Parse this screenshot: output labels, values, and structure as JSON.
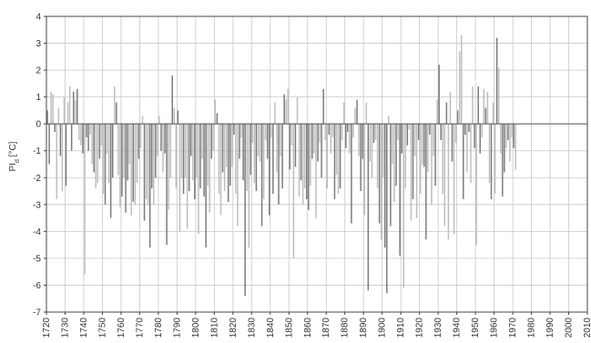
{
  "chart_data": {
    "type": "bar",
    "title": "",
    "xlabel": "",
    "ylabel": "PI",
    "ylabel_sub": "d",
    "ylabel_unit": " [°C]",
    "xlim": [
      1720,
      2010
    ],
    "ylim": [
      -7,
      4
    ],
    "grid": true,
    "x_ticks": [
      1720,
      1730,
      1740,
      1750,
      1760,
      1770,
      1780,
      1790,
      1800,
      1810,
      1820,
      1830,
      1840,
      1850,
      1860,
      1870,
      1880,
      1890,
      1900,
      1910,
      1920,
      1930,
      1940,
      1950,
      1960,
      1970,
      1980,
      1990,
      2000,
      2010
    ],
    "y_ticks": [
      -7,
      -6,
      -5,
      -4,
      -3,
      -2,
      -1,
      0,
      1,
      2,
      3,
      4
    ],
    "colors": {
      "bar_light": "#bdbdbd",
      "bar_dark": "#7a7a7a",
      "grid": "#c8c8c8",
      "axis": "#444444",
      "zero_line": "#555555"
    },
    "series": [
      {
        "start_year": 1720,
        "values": [
          0.5,
          -1.5,
          1.2,
          1.1,
          -0.3,
          -2.8,
          0.6,
          -1.2,
          -2.5,
          1.0,
          -2.3,
          0.8,
          1.4,
          -1.0,
          1.2,
          0.9,
          1.3,
          -0.6,
          -0.8,
          -1.1,
          -5.6,
          -0.5,
          -1.0,
          -0.4,
          -1.5,
          -1.8,
          -2.4,
          -2.2,
          -1.3,
          -0.8,
          -2.6,
          -3.0,
          -1.1,
          -2.2,
          -3.5,
          -2.0,
          1.4,
          0.8,
          -1.9,
          -3.1,
          -2.7,
          -2.0,
          -3.3,
          -2.1,
          -1.5,
          -3.4,
          -2.9,
          -3.0,
          -2.2,
          -1.3,
          -0.9,
          0.3,
          -3.6,
          -2.8,
          -3.0,
          -4.6,
          -2.4,
          -3.0,
          -2.0,
          -1.2,
          0.3,
          -1.0,
          -1.8,
          -1.1,
          -4.5,
          -3.2,
          -2.0,
          1.8,
          0.6,
          -2.4,
          0.5,
          -4.0,
          -2.0,
          -2.6,
          -2.0,
          -3.9,
          -2.5,
          -1.2,
          -2.1,
          -2.8,
          -2.0,
          -4.1,
          -2.4,
          -1.3,
          -2.7,
          -4.6,
          -2.3,
          -3.3,
          -1.3,
          -1.0,
          0.9,
          0.4,
          -2.6,
          -3.4,
          -1.8,
          -2.5,
          -1.6,
          -2.9,
          -2.3,
          -1.6,
          -0.4,
          -2.6,
          -3.8,
          -1.3,
          -0.5,
          -2.1,
          -6.4,
          -2.5,
          -4.6,
          -1.9,
          -0.7,
          -2.2,
          -2.5,
          -1.2,
          -1.4,
          -3.8,
          -2.8,
          -0.6,
          -1.3,
          -3.4,
          -0.5,
          -2.6,
          0.8,
          -1.8,
          -3.0,
          -1.2,
          -2.4,
          1.1,
          0.9,
          1.3,
          -1.7,
          -0.8,
          -5.0,
          -1.6,
          1.0,
          -2.7,
          -2.1,
          -3.0,
          -2.4,
          -2.8,
          -3.2,
          -2.3,
          -1.3,
          -1.1,
          -3.5,
          -1.4,
          -0.7,
          -2.0,
          1.3,
          -0.6,
          -2.4,
          -0.4,
          -1.1,
          -0.5,
          -2.8,
          -1.9,
          -2.6,
          -2.4,
          -0.6,
          0.8,
          -0.9,
          -0.3,
          -1.1,
          -3.7,
          -0.5,
          0.6,
          0.9,
          -1.2,
          -2.5,
          -1.3,
          -3.4,
          0.8,
          -6.2,
          -1.4,
          -2.0,
          -0.7,
          -0.6,
          -2.4,
          -3.7,
          -4.3,
          -2.0,
          -4.6,
          -6.3,
          0.3,
          -3.8,
          -1.5,
          -2.9,
          -2.3,
          -0.6,
          -4.9,
          -1.1,
          -6.1,
          -2.4,
          -0.8,
          -0.2,
          -3.6,
          -2.8,
          -1.2,
          -3.5,
          -0.6,
          -2.6,
          -1.5,
          -1.6,
          -4.3,
          -1.8,
          -0.4,
          -3.0,
          -1.2,
          -2.3,
          0.9,
          2.2,
          -0.6,
          -2.6,
          -3.8,
          0.8,
          -4.3,
          1.2,
          -1.4,
          -4.1,
          -0.7,
          0.5,
          2.7,
          3.3,
          -2.8,
          -0.4,
          -1.8,
          -0.3,
          -2.2,
          1.4,
          -0.9,
          -4.5,
          1.4,
          -1.1,
          -0.5,
          1.3,
          0.6,
          1.2,
          -2.2,
          -2.8,
          0.8,
          -2.6,
          3.2,
          2.1,
          -1.1,
          -2.7,
          -1.8,
          -0.9,
          -0.6,
          -1.4,
          -0.5,
          -0.9,
          -1.7
        ]
      }
    ]
  }
}
